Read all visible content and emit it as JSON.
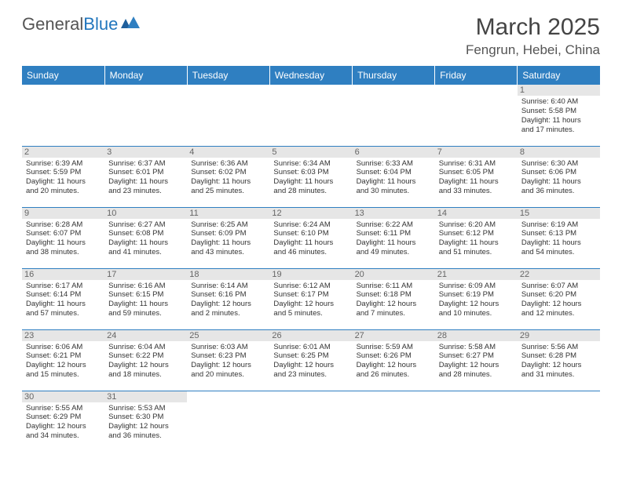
{
  "logo": {
    "text1": "General",
    "text2": "Blue"
  },
  "title": "March 2025",
  "location": "Fengrun, Hebei, China",
  "colors": {
    "header_bg": "#2f7fc1",
    "header_text": "#ffffff",
    "border": "#2f7fc1",
    "daynum_bg": "#e6e6e6",
    "body_text": "#333333",
    "logo_blue": "#2176bd"
  },
  "daysOfWeek": [
    "Sunday",
    "Monday",
    "Tuesday",
    "Wednesday",
    "Thursday",
    "Friday",
    "Saturday"
  ],
  "weeks": [
    [
      null,
      null,
      null,
      null,
      null,
      null,
      {
        "n": "1",
        "sunrise": "6:40 AM",
        "sunset": "5:58 PM",
        "day_h": "11",
        "day_m": "17"
      }
    ],
    [
      {
        "n": "2",
        "sunrise": "6:39 AM",
        "sunset": "5:59 PM",
        "day_h": "11",
        "day_m": "20"
      },
      {
        "n": "3",
        "sunrise": "6:37 AM",
        "sunset": "6:01 PM",
        "day_h": "11",
        "day_m": "23"
      },
      {
        "n": "4",
        "sunrise": "6:36 AM",
        "sunset": "6:02 PM",
        "day_h": "11",
        "day_m": "25"
      },
      {
        "n": "5",
        "sunrise": "6:34 AM",
        "sunset": "6:03 PM",
        "day_h": "11",
        "day_m": "28"
      },
      {
        "n": "6",
        "sunrise": "6:33 AM",
        "sunset": "6:04 PM",
        "day_h": "11",
        "day_m": "30"
      },
      {
        "n": "7",
        "sunrise": "6:31 AM",
        "sunset": "6:05 PM",
        "day_h": "11",
        "day_m": "33"
      },
      {
        "n": "8",
        "sunrise": "6:30 AM",
        "sunset": "6:06 PM",
        "day_h": "11",
        "day_m": "36"
      }
    ],
    [
      {
        "n": "9",
        "sunrise": "6:28 AM",
        "sunset": "6:07 PM",
        "day_h": "11",
        "day_m": "38"
      },
      {
        "n": "10",
        "sunrise": "6:27 AM",
        "sunset": "6:08 PM",
        "day_h": "11",
        "day_m": "41"
      },
      {
        "n": "11",
        "sunrise": "6:25 AM",
        "sunset": "6:09 PM",
        "day_h": "11",
        "day_m": "43"
      },
      {
        "n": "12",
        "sunrise": "6:24 AM",
        "sunset": "6:10 PM",
        "day_h": "11",
        "day_m": "46"
      },
      {
        "n": "13",
        "sunrise": "6:22 AM",
        "sunset": "6:11 PM",
        "day_h": "11",
        "day_m": "49"
      },
      {
        "n": "14",
        "sunrise": "6:20 AM",
        "sunset": "6:12 PM",
        "day_h": "11",
        "day_m": "51"
      },
      {
        "n": "15",
        "sunrise": "6:19 AM",
        "sunset": "6:13 PM",
        "day_h": "11",
        "day_m": "54"
      }
    ],
    [
      {
        "n": "16",
        "sunrise": "6:17 AM",
        "sunset": "6:14 PM",
        "day_h": "11",
        "day_m": "57"
      },
      {
        "n": "17",
        "sunrise": "6:16 AM",
        "sunset": "6:15 PM",
        "day_h": "11",
        "day_m": "59"
      },
      {
        "n": "18",
        "sunrise": "6:14 AM",
        "sunset": "6:16 PM",
        "day_h": "12",
        "day_m": "2"
      },
      {
        "n": "19",
        "sunrise": "6:12 AM",
        "sunset": "6:17 PM",
        "day_h": "12",
        "day_m": "5"
      },
      {
        "n": "20",
        "sunrise": "6:11 AM",
        "sunset": "6:18 PM",
        "day_h": "12",
        "day_m": "7"
      },
      {
        "n": "21",
        "sunrise": "6:09 AM",
        "sunset": "6:19 PM",
        "day_h": "12",
        "day_m": "10"
      },
      {
        "n": "22",
        "sunrise": "6:07 AM",
        "sunset": "6:20 PM",
        "day_h": "12",
        "day_m": "12"
      }
    ],
    [
      {
        "n": "23",
        "sunrise": "6:06 AM",
        "sunset": "6:21 PM",
        "day_h": "12",
        "day_m": "15"
      },
      {
        "n": "24",
        "sunrise": "6:04 AM",
        "sunset": "6:22 PM",
        "day_h": "12",
        "day_m": "18"
      },
      {
        "n": "25",
        "sunrise": "6:03 AM",
        "sunset": "6:23 PM",
        "day_h": "12",
        "day_m": "20"
      },
      {
        "n": "26",
        "sunrise": "6:01 AM",
        "sunset": "6:25 PM",
        "day_h": "12",
        "day_m": "23"
      },
      {
        "n": "27",
        "sunrise": "5:59 AM",
        "sunset": "6:26 PM",
        "day_h": "12",
        "day_m": "26"
      },
      {
        "n": "28",
        "sunrise": "5:58 AM",
        "sunset": "6:27 PM",
        "day_h": "12",
        "day_m": "28"
      },
      {
        "n": "29",
        "sunrise": "5:56 AM",
        "sunset": "6:28 PM",
        "day_h": "12",
        "day_m": "31"
      }
    ],
    [
      {
        "n": "30",
        "sunrise": "5:55 AM",
        "sunset": "6:29 PM",
        "day_h": "12",
        "day_m": "34"
      },
      {
        "n": "31",
        "sunrise": "5:53 AM",
        "sunset": "6:30 PM",
        "day_h": "12",
        "day_m": "36"
      },
      null,
      null,
      null,
      null,
      null
    ]
  ],
  "labels": {
    "sunrise": "Sunrise:",
    "sunset": "Sunset:",
    "daylight": "Daylight:",
    "hours": "hours",
    "and": "and",
    "minutes": "minutes."
  }
}
